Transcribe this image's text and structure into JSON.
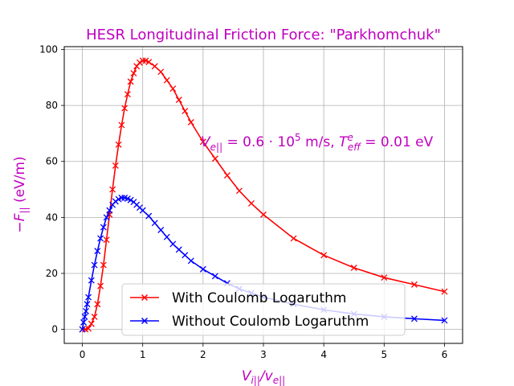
{
  "chart_data": {
    "type": "line",
    "title": "HESR Longitudinal Friction Force: \"Parkhomchuk\"",
    "xlabel": "Vi||/ve||",
    "ylabel": "−F|| (eV/m)",
    "xlim": [
      -0.3,
      6.3
    ],
    "ylim": [
      -5,
      101
    ],
    "xticks": [
      0,
      1,
      2,
      3,
      4,
      5,
      6
    ],
    "yticks": [
      0,
      20,
      40,
      60,
      80,
      100
    ],
    "grid": true,
    "legend_position": "lower-center",
    "annotation": "Ve|| = 0.6·10⁵ m/s, Teffᵉ = 0.01 eV",
    "series": [
      {
        "name": "With Coulomb Logaruthm",
        "color": "#ff0000",
        "marker": "x",
        "x": [
          0,
          0.05,
          0.1,
          0.15,
          0.2,
          0.25,
          0.3,
          0.35,
          0.4,
          0.45,
          0.5,
          0.55,
          0.6,
          0.65,
          0.7,
          0.75,
          0.8,
          0.85,
          0.9,
          0.95,
          1.0,
          1.05,
          1.1,
          1.2,
          1.3,
          1.4,
          1.5,
          1.6,
          1.7,
          1.8,
          2.0,
          2.2,
          2.4,
          2.6,
          2.8,
          3.0,
          3.5,
          4.0,
          4.5,
          5.0,
          5.5,
          6.0
        ],
        "y": [
          0,
          0,
          0.3,
          2,
          4.5,
          9,
          15.5,
          23,
          32,
          41,
          50,
          58.5,
          66,
          73,
          79,
          84,
          88.5,
          91.5,
          94,
          95.3,
          96,
          96,
          95.5,
          94,
          92,
          89,
          86,
          82,
          78,
          74,
          67,
          61,
          55,
          49.5,
          45,
          41,
          32.5,
          26.5,
          22,
          18.5,
          16,
          13.5
        ]
      },
      {
        "name": "Without Coulomb Logaruthm",
        "color": "#0000ff",
        "marker": "x",
        "x": [
          0,
          0.02,
          0.04,
          0.06,
          0.08,
          0.1,
          0.15,
          0.2,
          0.25,
          0.3,
          0.35,
          0.4,
          0.45,
          0.5,
          0.55,
          0.6,
          0.65,
          0.7,
          0.75,
          0.8,
          0.85,
          0.9,
          0.95,
          1.0,
          1.1,
          1.2,
          1.3,
          1.4,
          1.5,
          1.6,
          1.7,
          1.8,
          2.0,
          2.2,
          2.4,
          2.6,
          2.8,
          3.0,
          3.5,
          4.0,
          4.5,
          5.0,
          5.5,
          6.0
        ],
        "y": [
          0,
          2.5,
          4.5,
          6.5,
          9,
          11.5,
          17.5,
          23,
          28,
          32.5,
          36.5,
          40,
          42.5,
          44.5,
          45.7,
          46.5,
          47,
          47,
          46.7,
          46.2,
          45.5,
          44.5,
          43.5,
          42.5,
          40.5,
          38,
          35.5,
          33,
          30.5,
          28.5,
          26.5,
          24.5,
          21.5,
          19,
          16.5,
          14.5,
          13,
          11.5,
          9,
          7,
          5.5,
          4.5,
          3.8,
          3.2
        ]
      }
    ]
  }
}
